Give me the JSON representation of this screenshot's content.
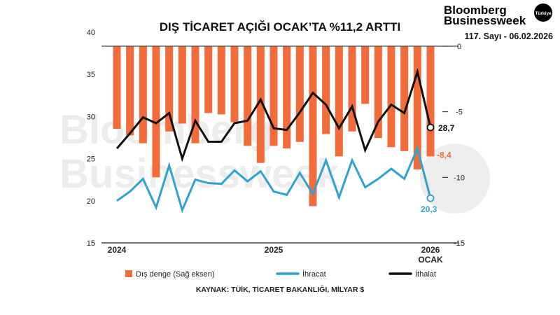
{
  "header": {
    "logo_line1": "Bloomberg",
    "logo_line2": "Businessweek",
    "logo_badge": "Türkiye",
    "issue": "117. Sayı - 06.02.2026"
  },
  "watermark": {
    "line1": "Bloomberg",
    "line2": "Businessweek",
    "badge": "Türkiye"
  },
  "source": "KAYNAK: TÜİK, TİCARET BAKANLIĞI, MİLYAR $",
  "chart_data": {
    "type": "bar+line",
    "title": "DIŞ TİCARET AÇIĞI OCAK’TA %11,2 ARTTI",
    "x_tick_labels": [
      {
        "index": 0,
        "label": "2024"
      },
      {
        "index": 12,
        "label": "2025"
      },
      {
        "index": 24,
        "label": "2026",
        "sub": "OCAK"
      }
    ],
    "x": [
      "2024-01",
      "2024-02",
      "2024-03",
      "2024-04",
      "2024-05",
      "2024-06",
      "2024-07",
      "2024-08",
      "2024-09",
      "2024-10",
      "2024-11",
      "2024-12",
      "2025-01",
      "2025-02",
      "2025-03",
      "2025-04",
      "2025-05",
      "2025-06",
      "2025-07",
      "2025-08",
      "2025-09",
      "2025-10",
      "2025-11",
      "2025-12",
      "2026-01"
    ],
    "left_axis": {
      "ylim": [
        15,
        40
      ],
      "ticks": [
        15,
        20,
        25,
        30,
        35,
        40
      ]
    },
    "right_axis": {
      "ylim": [
        -15,
        0
      ],
      "ticks": [
        0,
        -5,
        -10,
        -15
      ]
    },
    "grid": false,
    "legend_placement": "bottom",
    "series": [
      {
        "name": "Dış denge (Sağ eksen)",
        "type": "bar",
        "axis": "right",
        "color": "#f26b3a",
        "values": [
          -6.3,
          -6.8,
          -7.4,
          -10.0,
          -6.5,
          -5.9,
          -7.4,
          -5.1,
          -5.2,
          -5.8,
          -7.6,
          -8.9,
          -7.6,
          -7.8,
          -7.3,
          -12.2,
          -6.7,
          -8.4,
          -6.5,
          -4.4,
          -7.0,
          -7.7,
          -8.0,
          -9.4,
          -8.4
        ],
        "last_label": "-8,4"
      },
      {
        "name": "İhracat",
        "type": "line",
        "axis": "left",
        "color": "#2fa3cf",
        "values": [
          20.0,
          21.1,
          22.6,
          19.2,
          24.2,
          18.9,
          22.5,
          22.1,
          22.0,
          23.6,
          22.3,
          23.5,
          21.1,
          20.7,
          23.3,
          20.8,
          24.8,
          20.4,
          24.8,
          21.6,
          22.6,
          23.8,
          22.6,
          26.2,
          20.3
        ],
        "last_label": "20,3"
      },
      {
        "name": "İthalat",
        "type": "line",
        "axis": "left",
        "color": "#111111",
        "values": [
          26.2,
          28.0,
          29.9,
          29.2,
          30.4,
          25.0,
          29.5,
          27.0,
          27.0,
          29.2,
          29.5,
          32.0,
          28.6,
          28.4,
          30.5,
          32.8,
          31.4,
          28.6,
          31.2,
          26.0,
          29.4,
          31.4,
          30.4,
          35.3,
          28.7
        ],
        "last_label": "28,7"
      }
    ]
  }
}
